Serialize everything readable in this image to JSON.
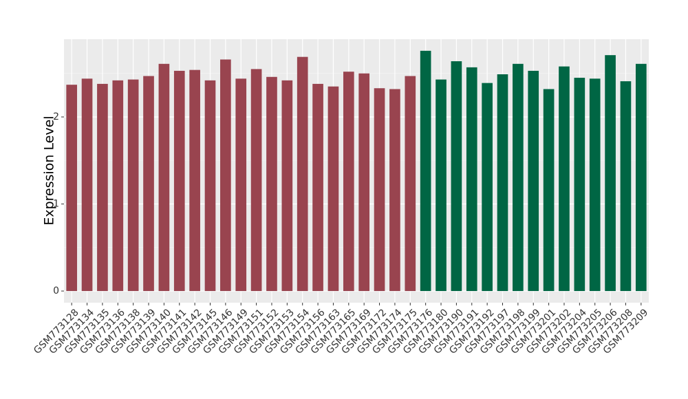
{
  "chart_data": {
    "type": "bar",
    "y_label": "Expression Level",
    "categories": [
      "GSM773128",
      "GSM773134",
      "GSM773135",
      "GSM773136",
      "GSM773138",
      "GSM773139",
      "GSM773140",
      "GSM773141",
      "GSM773142",
      "GSM773145",
      "GSM773146",
      "GSM773149",
      "GSM773151",
      "GSM773152",
      "GSM773153",
      "GSM773154",
      "GSM773156",
      "GSM773163",
      "GSM773165",
      "GSM773169",
      "GSM773172",
      "GSM773174",
      "GSM773175",
      "GSM773176",
      "GSM773180",
      "GSM773190",
      "GSM773191",
      "GSM773192",
      "GSM773197",
      "GSM773198",
      "GSM773199",
      "GSM773201",
      "GSM773202",
      "GSM773204",
      "GSM773205",
      "GSM773206",
      "GSM773208",
      "GSM773209"
    ],
    "values": [
      2.37,
      2.44,
      2.38,
      2.42,
      2.43,
      2.47,
      2.61,
      2.53,
      2.54,
      2.42,
      2.66,
      2.44,
      2.55,
      2.46,
      2.42,
      2.69,
      2.38,
      2.35,
      2.52,
      2.5,
      2.33,
      2.32,
      2.47,
      2.76,
      2.43,
      2.64,
      2.57,
      2.39,
      2.49,
      2.61,
      2.53,
      2.32,
      2.58,
      2.45,
      2.44,
      2.71,
      2.41,
      2.61
    ],
    "colors": [
      "#99444f",
      "#99444f",
      "#99444f",
      "#99444f",
      "#99444f",
      "#99444f",
      "#99444f",
      "#99444f",
      "#99444f",
      "#99444f",
      "#99444f",
      "#99444f",
      "#99444f",
      "#99444f",
      "#99444f",
      "#99444f",
      "#99444f",
      "#99444f",
      "#99444f",
      "#99444f",
      "#99444f",
      "#99444f",
      "#99444f",
      "#006644",
      "#006644",
      "#006644",
      "#006644",
      "#006644",
      "#006644",
      "#006644",
      "#006644",
      "#006644",
      "#006644",
      "#006644",
      "#006644",
      "#006644",
      "#006644",
      "#006644"
    ],
    "ylim": [
      -0.134,
      2.893
    ],
    "yticks": [
      0,
      1,
      2
    ],
    "grid": true
  }
}
